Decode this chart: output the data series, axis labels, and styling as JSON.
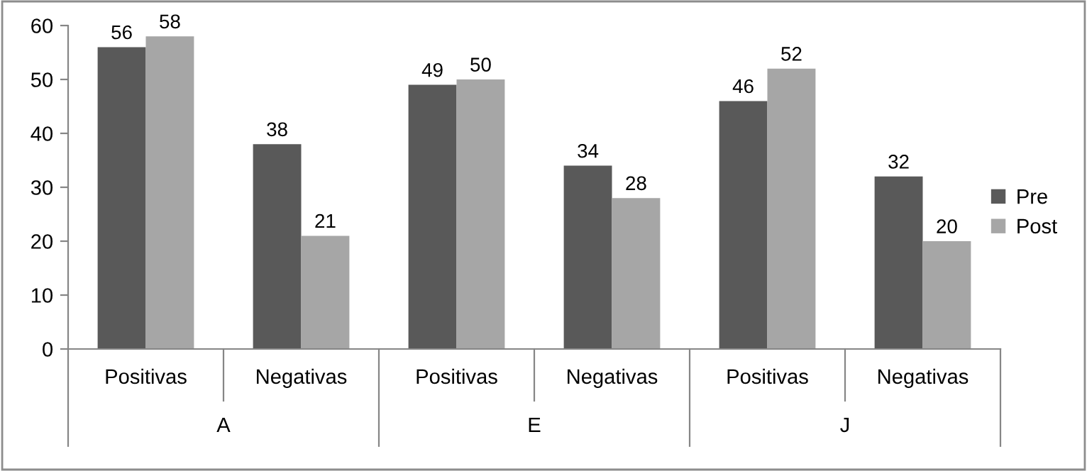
{
  "chart_data": {
    "type": "bar",
    "categories": [
      "Positivas",
      "Negativas",
      "Positivas",
      "Negativas",
      "Positivas",
      "Negativas"
    ],
    "series": [
      {
        "name": "Pre",
        "color": "#595959",
        "values": [
          56,
          38,
          49,
          34,
          46,
          32
        ]
      },
      {
        "name": "Post",
        "color": "#a6a6a6",
        "values": [
          58,
          21,
          50,
          28,
          52,
          20
        ]
      }
    ],
    "annotations": [
      "A",
      "E",
      "J"
    ],
    "ylim": [
      0,
      60
    ],
    "yticks": [
      0,
      10,
      20,
      30,
      40,
      50,
      60
    ],
    "data_labels": true,
    "legend": "right",
    "grid": false
  }
}
